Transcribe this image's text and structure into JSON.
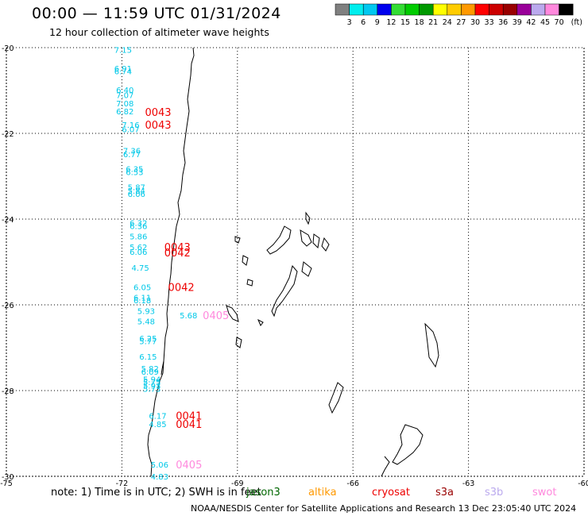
{
  "title": "00:00 — 11:59 UTC 01/31/2024",
  "subtitle": "12 hour collection of altimeter wave heights",
  "color_scale": {
    "unit": "(ft)",
    "bins": [
      {
        "label": "3",
        "color": "#808080"
      },
      {
        "label": "6",
        "color": "#00eeee"
      },
      {
        "label": "9",
        "color": "#00c8f0"
      },
      {
        "label": "12",
        "color": "#0000ee"
      },
      {
        "label": "15",
        "color": "#33dd33"
      },
      {
        "label": "18",
        "color": "#00cc00"
      },
      {
        "label": "21",
        "color": "#009900"
      },
      {
        "label": "24",
        "color": "#ffff00"
      },
      {
        "label": "27",
        "color": "#ffcc00"
      },
      {
        "label": "30",
        "color": "#ff9900"
      },
      {
        "label": "33",
        "color": "#ff0000"
      },
      {
        "label": "36",
        "color": "#cc0000"
      },
      {
        "label": "39",
        "color": "#990000"
      },
      {
        "label": "42",
        "color": "#990099"
      },
      {
        "label": "45",
        "color": "#bbaaee"
      },
      {
        "label": "70",
        "color": "#ff88dd"
      },
      {
        "label": "",
        "color": "#000000"
      }
    ]
  },
  "axes": {
    "lat_ticks": [
      {
        "value": -20,
        "label": "-20"
      },
      {
        "value": -22,
        "label": "-22"
      },
      {
        "value": -24,
        "label": "-24"
      },
      {
        "value": -26,
        "label": "-26"
      },
      {
        "value": -28,
        "label": "-28"
      },
      {
        "value": -30,
        "label": "-30"
      }
    ],
    "lon_ticks": [
      {
        "value": -75,
        "label": "-75"
      },
      {
        "value": -72,
        "label": "-72"
      },
      {
        "value": -69,
        "label": "-69"
      },
      {
        "value": -66,
        "label": "-66"
      },
      {
        "value": -63,
        "label": "-63"
      },
      {
        "value": -60,
        "label": "-60"
      }
    ],
    "lat_range": [
      -30,
      -20
    ],
    "lon_range": [
      -75,
      -60
    ],
    "grid": true
  },
  "wave_labels": [
    {
      "text": "7.15",
      "lon": -72.2,
      "lat": -20.05
    },
    {
      "text": "6.91",
      "lon": -72.2,
      "lat": -20.48
    },
    {
      "text": "6.74",
      "lon": -72.2,
      "lat": -20.55
    },
    {
      "text": "6.40",
      "lon": -72.15,
      "lat": -20.98
    },
    {
      "text": "7.07",
      "lon": -72.15,
      "lat": -21.1
    },
    {
      "text": "7.08",
      "lon": -72.15,
      "lat": -21.3
    },
    {
      "text": "6.82",
      "lon": -72.15,
      "lat": -21.48
    },
    {
      "text": "7.16",
      "lon": -72.0,
      "lat": -21.8
    },
    {
      "text": "6.07",
      "lon": -72.0,
      "lat": -21.9
    },
    {
      "text": "7.36",
      "lon": -71.97,
      "lat": -22.4
    },
    {
      "text": "6.77",
      "lon": -71.97,
      "lat": -22.48
    },
    {
      "text": "6.35",
      "lon": -71.9,
      "lat": -22.82
    },
    {
      "text": "6.53",
      "lon": -71.9,
      "lat": -22.9
    },
    {
      "text": "5.87",
      "lon": -71.85,
      "lat": -23.25
    },
    {
      "text": "5.84",
      "lon": -71.85,
      "lat": -23.33
    },
    {
      "text": "6.06",
      "lon": -71.85,
      "lat": -23.41
    },
    {
      "text": "6.32",
      "lon": -71.8,
      "lat": -24.08
    },
    {
      "text": "6.36",
      "lon": -71.8,
      "lat": -24.16
    },
    {
      "text": "5.86",
      "lon": -71.8,
      "lat": -24.4
    },
    {
      "text": "5.62",
      "lon": -71.8,
      "lat": -24.65
    },
    {
      "text": "6.06",
      "lon": -71.8,
      "lat": -24.76
    },
    {
      "text": "4.75",
      "lon": -71.75,
      "lat": -25.13
    },
    {
      "text": "6.05",
      "lon": -71.7,
      "lat": -25.58
    },
    {
      "text": "6.11",
      "lon": -71.7,
      "lat": -25.82
    },
    {
      "text": "6.18",
      "lon": -71.7,
      "lat": -25.89
    },
    {
      "text": "5.93",
      "lon": -71.6,
      "lat": -26.14
    },
    {
      "text": "5.68",
      "lon": -70.5,
      "lat": -26.24
    },
    {
      "text": "5.48",
      "lon": -71.6,
      "lat": -26.38
    },
    {
      "text": "6.25",
      "lon": -71.55,
      "lat": -26.78
    },
    {
      "text": "5.77",
      "lon": -71.55,
      "lat": -26.84
    },
    {
      "text": "6.15",
      "lon": -71.55,
      "lat": -27.2
    },
    {
      "text": "5.82",
      "lon": -71.5,
      "lat": -27.48
    },
    {
      "text": "6.09",
      "lon": -71.5,
      "lat": -27.56
    },
    {
      "text": "5.94",
      "lon": -71.45,
      "lat": -27.73
    },
    {
      "text": "5.75",
      "lon": -71.45,
      "lat": -27.8
    },
    {
      "text": "5.93",
      "lon": -71.45,
      "lat": -27.88
    },
    {
      "text": "5.73",
      "lon": -71.45,
      "lat": -27.95
    },
    {
      "text": "6.17",
      "lon": -71.3,
      "lat": -28.58
    },
    {
      "text": "4.85",
      "lon": -71.3,
      "lat": -28.78
    },
    {
      "text": "5.06",
      "lon": -71.25,
      "lat": -29.72
    },
    {
      "text": "4.83",
      "lon": -71.25,
      "lat": -30.0
    }
  ],
  "pass_labels": [
    {
      "text": "0043",
      "lon": -71.4,
      "lat": -21.5,
      "satellite": "cryosat"
    },
    {
      "text": "0043",
      "lon": -71.4,
      "lat": -21.8,
      "satellite": "cryosat"
    },
    {
      "text": "0043",
      "lon": -70.9,
      "lat": -24.65,
      "satellite": "cryosat"
    },
    {
      "text": "0042",
      "lon": -70.9,
      "lat": -24.78,
      "satellite": "cryosat"
    },
    {
      "text": "0042",
      "lon": -70.8,
      "lat": -25.58,
      "satellite": "cryosat"
    },
    {
      "text": "0405",
      "lon": -69.9,
      "lat": -26.24,
      "satellite": "swot"
    },
    {
      "text": "0041",
      "lon": -70.6,
      "lat": -28.58,
      "satellite": "cryosat"
    },
    {
      "text": "0041",
      "lon": -70.6,
      "lat": -28.78,
      "satellite": "cryosat"
    },
    {
      "text": "0405",
      "lon": -70.6,
      "lat": -29.72,
      "satellite": "swot"
    }
  ],
  "note": "note:  1) Time is in UTC;  2) SWH is in feet",
  "satellites": [
    {
      "name": "jason3",
      "color": "#006600"
    },
    {
      "name": "altika",
      "color": "#ff9900"
    },
    {
      "name": "cryosat",
      "color": "#ee0000"
    },
    {
      "name": "s3a",
      "color": "#990000"
    },
    {
      "name": "s3b",
      "color": "#bbaaee"
    },
    {
      "name": "swot",
      "color": "#ff88dd"
    }
  ],
  "credit": "NOAA/NESDIS Center for Satellite Applications and Research    13 Dec 23:05:40 UTC 2024",
  "colors": {
    "wave_label": "#00c8e8",
    "grid": "#000000",
    "coast": "#000000"
  }
}
